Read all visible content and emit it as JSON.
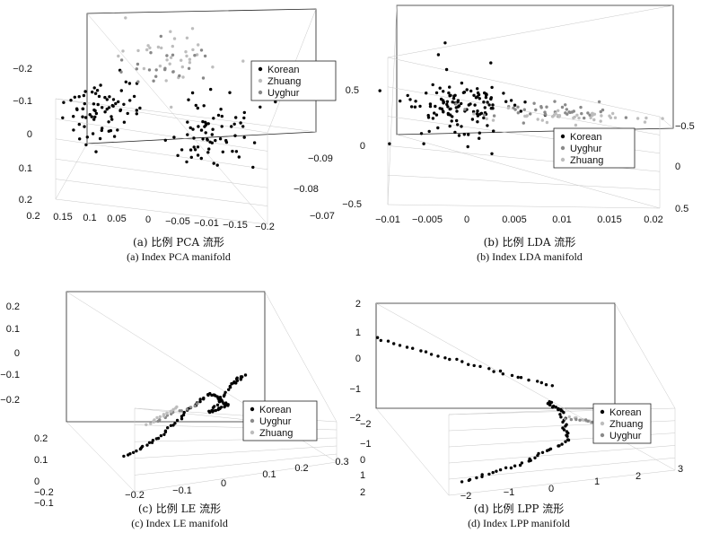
{
  "chart_data": [
    {
      "id": "a",
      "type": "scatter",
      "title": "",
      "caption_zh": "(a) 比例  PCA 流形",
      "caption_en": "(a) Index PCA manifold",
      "z_ticks": [
        "0.2",
        "0.1",
        "0",
        "−0.1",
        "−0.2"
      ],
      "x_ticks": [
        "0.2",
        "0.15",
        "0.1",
        "0.05",
        "0",
        "−0.05",
        "−0.01",
        "−0.15",
        "−0.2"
      ],
      "y_ticks": [
        "−0.07",
        "−0.08",
        "−0.09"
      ],
      "legend": {
        "position": "top-right",
        "entries": [
          "Korean",
          "Zhuang",
          "Uyghur"
        ]
      },
      "series": [
        {
          "name": "Korean",
          "color": "#000000",
          "clusters": [
            {
              "cx": 0.14,
              "cy": -0.082,
              "cz": 0.035,
              "sx": 0.035,
              "sy": 0.004,
              "sz": 0.04,
              "n": 75
            },
            {
              "cx": -0.06,
              "cy": -0.082,
              "cz": -0.02,
              "sx": 0.04,
              "sy": 0.005,
              "sz": 0.04,
              "n": 70
            }
          ]
        },
        {
          "name": "Zhuang",
          "color": "#bdbdbd",
          "clusters": [
            {
              "cx": 0.05,
              "cy": -0.072,
              "cz": 0.125,
              "sx": 0.045,
              "sy": 0.003,
              "sz": 0.035,
              "n": 35
            }
          ]
        },
        {
          "name": "Uyghur",
          "color": "#888888",
          "clusters": [
            {
              "cx": 0.06,
              "cy": -0.073,
              "cz": 0.11,
              "sx": 0.04,
              "sy": 0.003,
              "sz": 0.03,
              "n": 22
            }
          ]
        }
      ]
    },
    {
      "id": "b",
      "type": "scatter",
      "title": "",
      "caption_zh": "(b) 比例  LDA 流形",
      "caption_en": "(b) Index LDA manifold",
      "z_ticks": [
        "0.5",
        "0",
        "−0.5"
      ],
      "x_ticks": [
        "−0.01",
        "−0.005",
        "0",
        "0.005",
        "0.01",
        "0.015",
        "0.02"
      ],
      "y_ticks": [
        "0.5",
        "0",
        "−0.5"
      ],
      "legend": {
        "position": "right",
        "entries": [
          "Korean",
          "Uyghur",
          "Zhuang"
        ]
      },
      "series": [
        {
          "name": "Korean",
          "color": "#000000",
          "clusters": [
            {
              "cx": -0.003,
              "cy": 0.0,
              "cz": 0.12,
              "sx": 0.003,
              "sy": 0.2,
              "sz": 0.13,
              "n": 130
            }
          ]
        },
        {
          "name": "Uyghur",
          "color": "#8a8a8a",
          "clusters": [
            {
              "cx": 0.006,
              "cy": 0.2,
              "cz": 0.5,
              "sx": 0.004,
              "sy": 0.1,
              "sz": 0.09,
              "n": 40
            }
          ]
        },
        {
          "name": "Zhuang",
          "color": "#bdbdbd",
          "clusters": [
            {
              "cx": 0.009,
              "cy": 0.3,
              "cz": 0.58,
              "sx": 0.005,
              "sy": 0.1,
              "sz": 0.05,
              "n": 40
            }
          ]
        }
      ]
    },
    {
      "id": "c",
      "type": "scatter",
      "title": "",
      "caption_zh": "(c) 比例  LE 流形",
      "caption_en": "(c) Index LE manifold",
      "z_ticks": [
        "0.2",
        "0.1",
        "0",
        "−0.1",
        "−0.2"
      ],
      "x_ticks": [
        "−0.2",
        "−0.1",
        "0",
        "0.1",
        "0.2",
        "0.3"
      ],
      "y_ticks": [
        "0.2",
        "0.1",
        "0",
        "−0.1",
        "−0.2"
      ],
      "legend": {
        "position": "right",
        "entries": [
          "Korean",
          "Uyghur",
          "Zhuang"
        ]
      },
      "series": [
        {
          "name": "Korean",
          "color": "#000000",
          "curve": [
            [
              -0.16,
              -0.05,
              -0.17
            ],
            [
              -0.05,
              0.0,
              -0.14
            ],
            [
              0.05,
              0.08,
              -0.1
            ],
            [
              0.12,
              0.1,
              -0.05
            ],
            [
              0.12,
              0.0,
              -0.02
            ],
            [
              0.05,
              -0.05,
              0.0
            ],
            [
              0.15,
              0.05,
              0.02
            ],
            [
              0.2,
              0.1,
              0.01
            ]
          ],
          "n": 95
        },
        {
          "name": "Uyghur",
          "color": "#8a8a8a",
          "curve": [
            [
              -0.12,
              -0.15,
              0.08
            ],
            [
              -0.05,
              -0.1,
              0.06
            ],
            [
              0.02,
              -0.05,
              0.04
            ]
          ],
          "n": 12
        },
        {
          "name": "Zhuang",
          "color": "#bdbdbd",
          "curve": [
            [
              -0.16,
              -0.18,
              0.1
            ],
            [
              -0.1,
              -0.13,
              0.08
            ],
            [
              -0.05,
              -0.09,
              0.07
            ]
          ],
          "n": 16
        }
      ]
    },
    {
      "id": "d",
      "type": "scatter",
      "title": "",
      "caption_zh": "(d) 比例  LPP 流形",
      "caption_en": "(d) Index LPP manifold",
      "z_ticks": [
        "2",
        "1",
        "0",
        "−1",
        "−2"
      ],
      "x_ticks": [
        "−2",
        "−1",
        "0",
        "1",
        "2",
        "3"
      ],
      "y_ticks": [
        "−2",
        "−1",
        "0",
        "1",
        "2"
      ],
      "legend": {
        "position": "right",
        "entries": [
          "Korean",
          "Zhuang",
          "Uyghur"
        ]
      },
      "series": [
        {
          "name": "Korean",
          "color": "#000000",
          "curves": [
            {
              "pts": [
                [
                  -2.0,
                  2.0,
                  0.8
                ],
                [
                  -0.5,
                  1.0,
                  0.8
                ],
                [
                  1.0,
                  0.0,
                  0.8
                ]
              ],
              "n": 30
            },
            {
              "pts": [
                [
                  -1.5,
                  -1.5,
                  -2.0
                ],
                [
                  0.0,
                  -1.2,
                  -1.6
                ],
                [
                  1.0,
                  -1.0,
                  -0.8
                ],
                [
                  1.0,
                  -0.6,
                  0.2
                ],
                [
                  0.8,
                  -0.3,
                  0.4
                ]
              ],
              "n": 60
            },
            {
              "pts": [
                [
                  2.0,
                  -0.5,
                  0.2
                ],
                [
                  2.2,
                  -0.6,
                  -0.4
                ]
              ],
              "n": 8
            }
          ]
        },
        {
          "name": "Zhuang",
          "color": "#bdbdbd",
          "curves": [
            {
              "pts": [
                [
                  1.3,
                  -0.4,
                  -0.3
                ],
                [
                  1.8,
                  -0.5,
                  -0.6
                ]
              ],
              "n": 10
            }
          ]
        },
        {
          "name": "Uyghur",
          "color": "#8a8a8a",
          "curves": [
            {
              "pts": [
                [
                  1.2,
                  -0.3,
                  -0.5
                ],
                [
                  2.0,
                  -0.6,
                  -0.5
                ]
              ],
              "n": 10
            }
          ]
        }
      ]
    }
  ]
}
